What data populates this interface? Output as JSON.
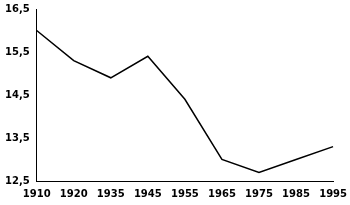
{
  "chart_data": {
    "type": "line",
    "categories": [
      "1910",
      "1920",
      "1935",
      "1945",
      "1955",
      "1965",
      "1975",
      "1985",
      "1995"
    ],
    "values": [
      16.0,
      15.3,
      14.9,
      15.4,
      14.4,
      13.0,
      12.7,
      13.0,
      13.3
    ],
    "color": "#000000",
    "line_style": "solid",
    "marker": "none",
    "ylim": [
      12.5,
      16.5
    ],
    "yticks": [
      {
        "value": 12.5,
        "label": "12,5"
      },
      {
        "value": 13.5,
        "label": "13,5"
      },
      {
        "value": 14.5,
        "label": "14,5"
      },
      {
        "value": 15.5,
        "label": "15,5"
      },
      {
        "value": 16.5,
        "label": "16,5"
      }
    ],
    "grid": false
  }
}
